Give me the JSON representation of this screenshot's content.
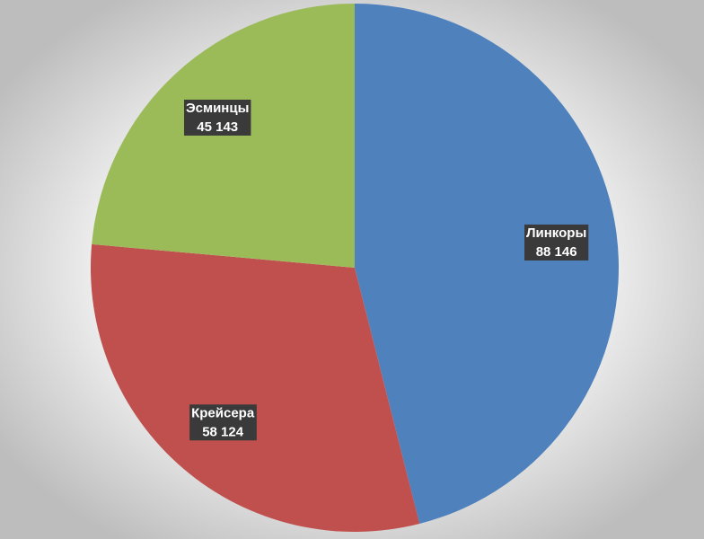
{
  "chart_data": {
    "type": "pie",
    "categories": [
      "Линкоры",
      "Крейсера",
      "Эсминцы"
    ],
    "values": [
      88146,
      58124,
      45143
    ],
    "value_labels": [
      "88 146",
      "58 124",
      "45 143"
    ],
    "colors": [
      "#4f81bd",
      "#c0504d",
      "#9bbb59"
    ]
  }
}
